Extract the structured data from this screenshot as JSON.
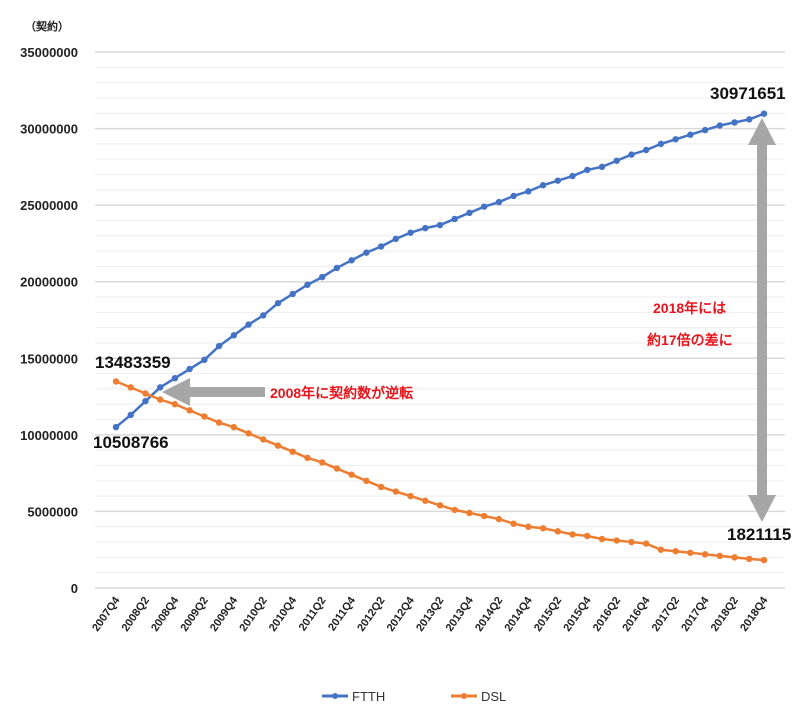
{
  "chart_data": {
    "type": "line",
    "title": "",
    "ylabel": "（契約）",
    "xlabel": "",
    "ylim": [
      0,
      35000000
    ],
    "ytick_step": 5000000,
    "minor_grid_step": 1000000,
    "grid": true,
    "legend_position": "bottom",
    "x": [
      "2007Q4",
      "2008Q1",
      "2008Q2",
      "2008Q3",
      "2008Q4",
      "2009Q1",
      "2009Q2",
      "2009Q3",
      "2009Q4",
      "2010Q1",
      "2010Q2",
      "2010Q3",
      "2010Q4",
      "2011Q1",
      "2011Q2",
      "2011Q3",
      "2011Q4",
      "2012Q1",
      "2012Q2",
      "2012Q3",
      "2012Q4",
      "2013Q1",
      "2013Q2",
      "2013Q3",
      "2013Q4",
      "2014Q1",
      "2014Q2",
      "2014Q3",
      "2014Q4",
      "2015Q1",
      "2015Q2",
      "2015Q3",
      "2015Q4",
      "2016Q1",
      "2016Q2",
      "2016Q3",
      "2016Q4",
      "2017Q1",
      "2017Q2",
      "2017Q3",
      "2017Q4",
      "2018Q1",
      "2018Q2",
      "2018Q3",
      "2018Q4"
    ],
    "series": [
      {
        "name": "FTTH",
        "color": "#4472c4",
        "values": [
          10508766,
          11300000,
          12200000,
          13100000,
          13700000,
          14300000,
          14900000,
          15800000,
          16500000,
          17200000,
          17800000,
          18600000,
          19200000,
          19800000,
          20300000,
          20900000,
          21400000,
          21900000,
          22300000,
          22800000,
          23200000,
          23500000,
          23700000,
          24100000,
          24500000,
          24900000,
          25200000,
          25600000,
          25900000,
          26300000,
          26600000,
          26900000,
          27300000,
          27500000,
          27900000,
          28300000,
          28600000,
          29000000,
          29300000,
          29600000,
          29900000,
          30200000,
          30400000,
          30600000,
          30971651
        ]
      },
      {
        "name": "DSL",
        "color": "#ed7d31",
        "values": [
          13483359,
          13100000,
          12700000,
          12300000,
          12000000,
          11600000,
          11200000,
          10800000,
          10500000,
          10100000,
          9700000,
          9300000,
          8900000,
          8500000,
          8200000,
          7800000,
          7400000,
          7000000,
          6600000,
          6300000,
          6000000,
          5700000,
          5400000,
          5100000,
          4900000,
          4700000,
          4500000,
          4200000,
          4000000,
          3900000,
          3700000,
          3500000,
          3400000,
          3200000,
          3100000,
          3000000,
          2900000,
          2500000,
          2400000,
          2300000,
          2200000,
          2100000,
          2000000,
          1900000,
          1821115
        ]
      }
    ],
    "data_labels": {
      "ftth_first": "10508766",
      "dsl_first": "13483359",
      "ftth_last": "30971651",
      "dsl_last": "1821115"
    },
    "annotations": {
      "crossover": "2008年に契約数が逆転",
      "gap_line1": "2018年には",
      "gap_line2": "約17倍の差に"
    },
    "arrow_color": "#a6a6a6",
    "annotation_color": "#e8141c"
  }
}
